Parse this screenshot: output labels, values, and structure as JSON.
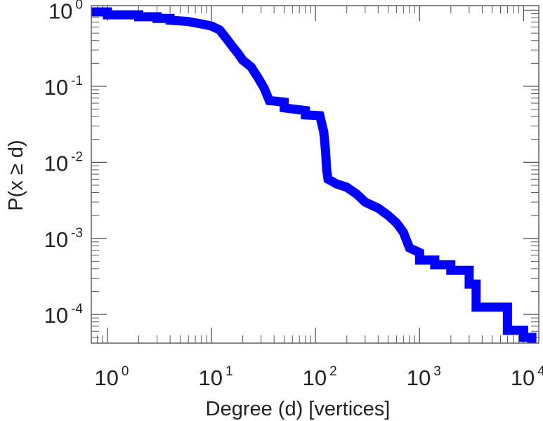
{
  "chart_data": {
    "type": "line",
    "title": "",
    "xlabel": "Degree (d) [vertices]",
    "ylabel": "P(x ≥ d)",
    "x_scale": "log",
    "y_scale": "log",
    "xlim": [
      0.7,
      14000
    ],
    "ylim": [
      4.2e-05,
      1.15
    ],
    "grid": false,
    "legend": "none",
    "line_color": "#0000ff",
    "frame_color": "#555555",
    "x_ticks": [
      {
        "value": 1,
        "base": "10",
        "exp": "0"
      },
      {
        "value": 10,
        "base": "10",
        "exp": "1"
      },
      {
        "value": 100,
        "base": "10",
        "exp": "2"
      },
      {
        "value": 1000,
        "base": "10",
        "exp": "3"
      },
      {
        "value": 10000,
        "base": "10",
        "exp": "4"
      }
    ],
    "y_ticks": [
      {
        "value": 1,
        "base": "10",
        "exp": "0"
      },
      {
        "value": 0.1,
        "base": "10",
        "exp": "-1"
      },
      {
        "value": 0.01,
        "base": "10",
        "exp": "-2"
      },
      {
        "value": 0.001,
        "base": "10",
        "exp": "-3"
      },
      {
        "value": 0.0001,
        "base": "10",
        "exp": "-4"
      }
    ],
    "series": [
      {
        "points": [
          [
            0.7,
            0.95
          ],
          [
            1.0,
            0.95
          ],
          [
            1.0,
            0.87
          ],
          [
            2.0,
            0.87
          ],
          [
            2.0,
            0.82
          ],
          [
            3.0,
            0.82
          ],
          [
            3.0,
            0.78
          ],
          [
            4.0,
            0.78
          ],
          [
            4.0,
            0.74
          ],
          [
            6.0,
            0.71
          ],
          [
            8.0,
            0.66
          ],
          [
            10.0,
            0.62
          ],
          [
            12.0,
            0.55
          ],
          [
            14.0,
            0.42
          ],
          [
            16.0,
            0.33
          ],
          [
            18.0,
            0.27
          ],
          [
            20.0,
            0.22
          ],
          [
            24.0,
            0.18
          ],
          [
            28.0,
            0.13
          ],
          [
            32.0,
            0.095
          ],
          [
            36.0,
            0.065
          ],
          [
            50.0,
            0.062
          ],
          [
            50.0,
            0.052
          ],
          [
            80.0,
            0.048
          ],
          [
            80.0,
            0.042
          ],
          [
            110.0,
            0.041
          ],
          [
            120.0,
            0.025
          ],
          [
            125.0,
            0.014
          ],
          [
            128.0,
            0.008
          ],
          [
            132.0,
            0.006
          ],
          [
            160.0,
            0.0052
          ],
          [
            200.0,
            0.0047
          ],
          [
            250.0,
            0.0038
          ],
          [
            300.0,
            0.003
          ],
          [
            400.0,
            0.0025
          ],
          [
            500.0,
            0.002
          ],
          [
            600.0,
            0.0016
          ],
          [
            700.0,
            0.0012
          ],
          [
            800.0,
            0.00075
          ],
          [
            1000.0,
            0.00065
          ],
          [
            1000.0,
            0.00052
          ],
          [
            1400.0,
            0.00052
          ],
          [
            1400.0,
            0.00045
          ],
          [
            2000.0,
            0.00045
          ],
          [
            2000.0,
            0.00038
          ],
          [
            3000.0,
            0.00038
          ],
          [
            3000.0,
            0.00025
          ],
          [
            3500.0,
            0.00025
          ],
          [
            3500.0,
            0.000125
          ],
          [
            7000.0,
            0.000125
          ],
          [
            7000.0,
            6.2e-05
          ],
          [
            10000.0,
            6.2e-05
          ],
          [
            10000.0,
            5e-05
          ],
          [
            12000.0,
            5e-05
          ],
          [
            12000.0,
            4.2e-05
          ]
        ]
      }
    ]
  }
}
